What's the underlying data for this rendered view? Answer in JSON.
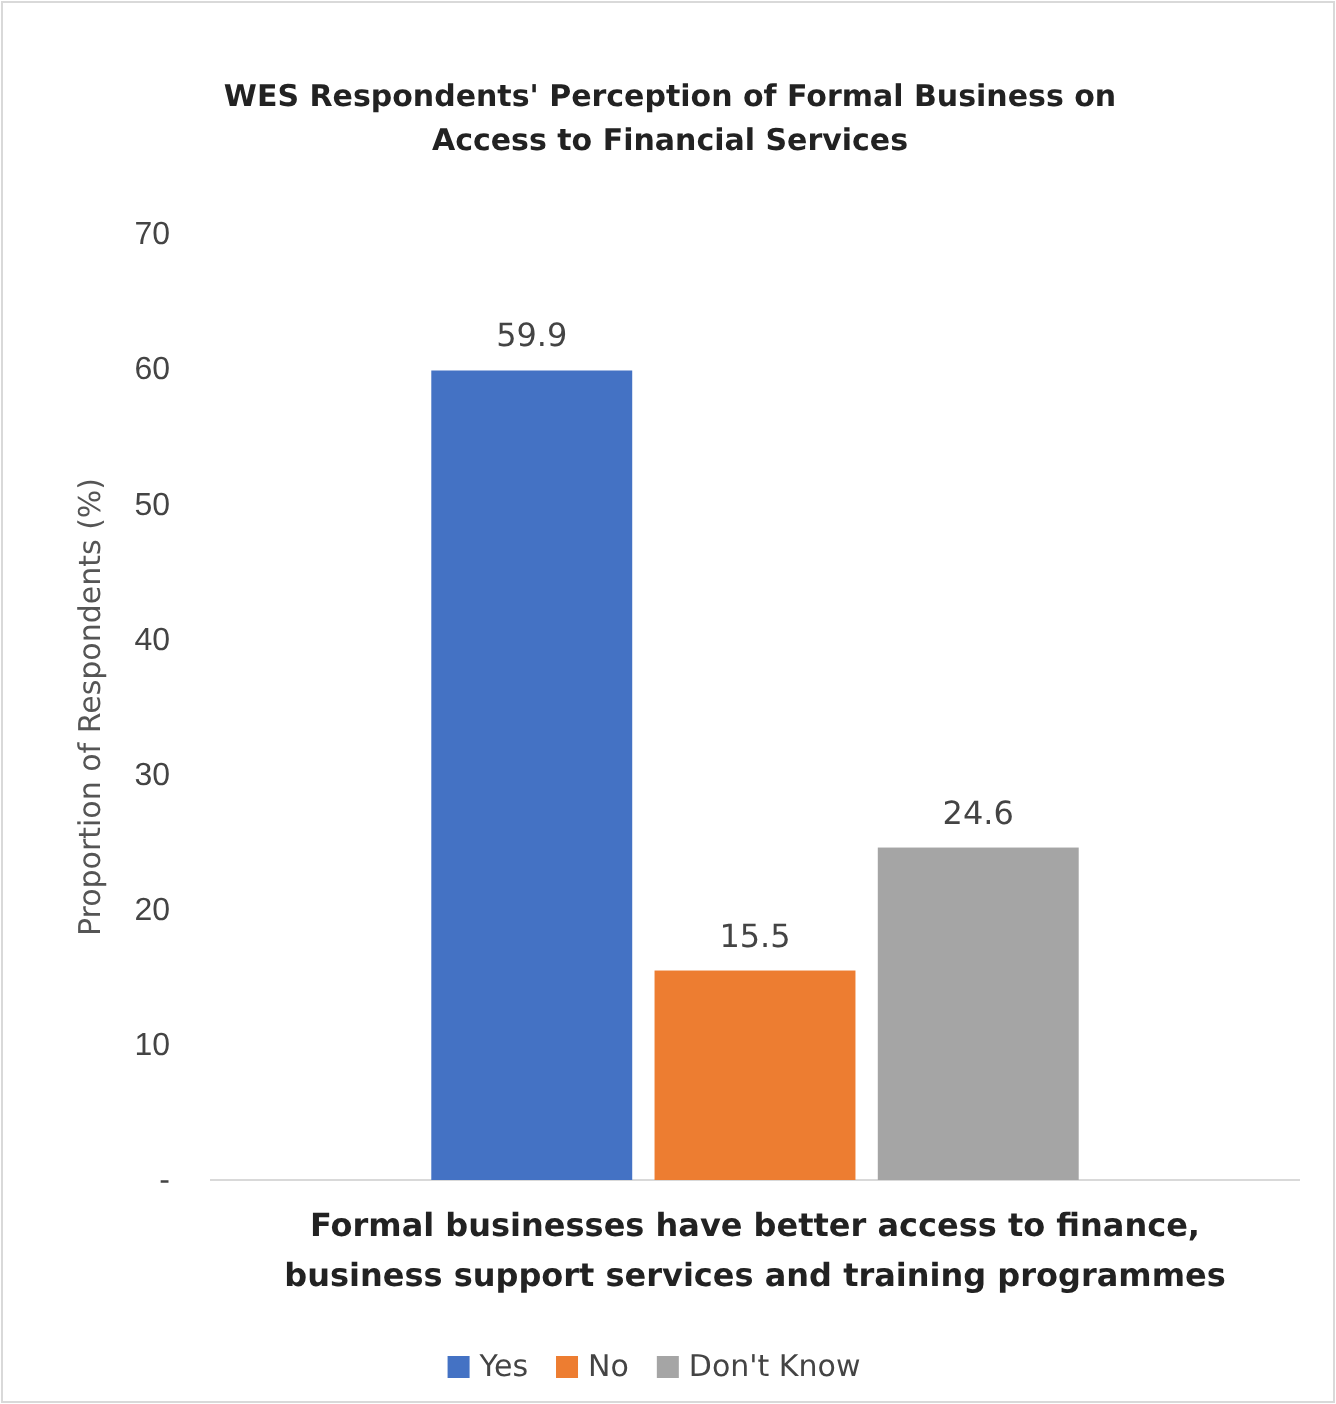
{
  "chart_data": {
    "type": "bar",
    "title": "WES Respondents' Perception of Formal Business on Access to Financial Services",
    "ylabel": "Proportion of Respondents (%)",
    "categories": [
      "Formal businesses have better access to finance, business support services and training programmes"
    ],
    "series": [
      {
        "name": "Yes",
        "color": "#4472c4",
        "values": [
          59.9
        ]
      },
      {
        "name": "No",
        "color": "#ed7d31",
        "values": [
          15.5
        ]
      },
      {
        "name": "Don't Know",
        "color": "#a5a5a5",
        "values": [
          24.6
        ]
      }
    ],
    "ylim": [
      0,
      70
    ],
    "yticks": [
      {
        "value": 0,
        "label": "-"
      },
      10,
      20,
      30,
      40,
      50,
      60,
      70
    ],
    "data_labels": true,
    "legend": "bottom",
    "grid": false
  }
}
